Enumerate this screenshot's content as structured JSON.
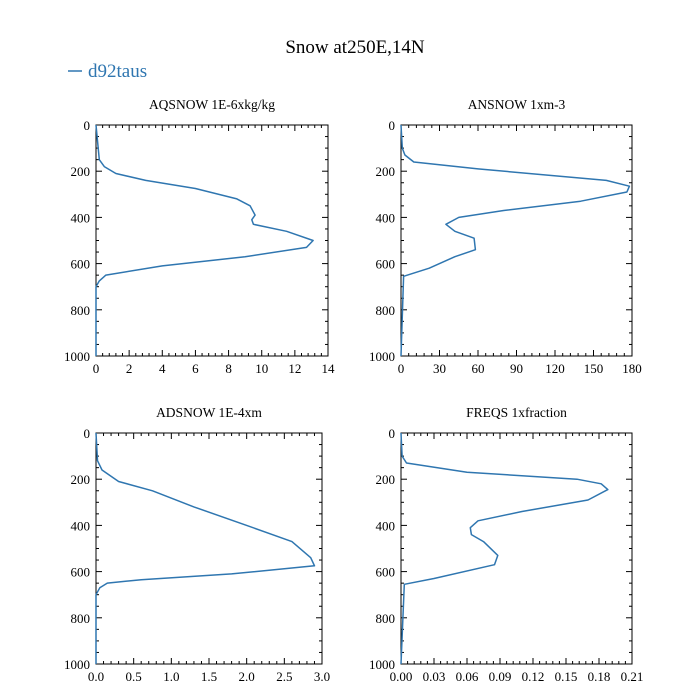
{
  "figure": {
    "title": "Snow at250E,14N",
    "legend": {
      "label": "d92taus",
      "color": "#2f76b0"
    }
  },
  "chart_data": [
    {
      "type": "line",
      "title": "AQSNOW  1E-6xkg/kg",
      "xlim": [
        0,
        14
      ],
      "ylim": [
        1000,
        0
      ],
      "xticks": [
        0,
        2,
        4,
        6,
        8,
        10,
        12,
        14
      ],
      "xtick_labels": [
        "0",
        "2",
        "4",
        "6",
        "8",
        "10",
        "12",
        "14"
      ],
      "yticks": [
        0,
        200,
        400,
        600,
        800,
        1000
      ],
      "ytick_labels": [
        "0",
        "200",
        "400",
        "600",
        "800",
        "1000"
      ],
      "series": [
        {
          "name": "d92taus",
          "x": [
            0,
            0.2,
            0.5,
            1.2,
            3.0,
            6.0,
            8.5,
            9.3,
            9.6,
            9.4,
            9.5,
            11.5,
            13.1,
            12.7,
            9.0,
            4.0,
            0.6,
            0.2,
            0,
            0
          ],
          "y": [
            0,
            150,
            180,
            210,
            240,
            275,
            320,
            350,
            390,
            410,
            430,
            460,
            500,
            530,
            570,
            610,
            650,
            675,
            700,
            1000
          ]
        }
      ]
    },
    {
      "type": "line",
      "title": "ANSNOW  1xm-3",
      "xlim": [
        0,
        180
      ],
      "ylim": [
        1000,
        0
      ],
      "xticks": [
        0,
        30,
        60,
        90,
        120,
        150,
        180
      ],
      "xtick_labels": [
        "0",
        "30",
        "60",
        "90",
        "120",
        "150",
        "180"
      ],
      "yticks": [
        0,
        200,
        400,
        600,
        800,
        1000
      ],
      "ytick_labels": [
        "0",
        "200",
        "400",
        "600",
        "800",
        "1000"
      ],
      "series": [
        {
          "name": "d92taus",
          "x": [
            0,
            1,
            3,
            10,
            60,
            160,
            178,
            176,
            140,
            80,
            45,
            35,
            42,
            57,
            58,
            42,
            22,
            2,
            0
          ],
          "y": [
            0,
            100,
            130,
            160,
            190,
            240,
            265,
            290,
            330,
            370,
            400,
            430,
            460,
            490,
            540,
            570,
            620,
            655,
            1000
          ]
        }
      ]
    },
    {
      "type": "line",
      "title": "ADSNOW  1E-4xm",
      "xlim": [
        0,
        3.0
      ],
      "ylim": [
        1000,
        0
      ],
      "xticks": [
        0,
        0.5,
        1.0,
        1.5,
        2.0,
        2.5,
        3.0
      ],
      "xtick_labels": [
        "0.0",
        "0.5",
        "1.0",
        "1.5",
        "2.0",
        "2.5",
        "3.0"
      ],
      "yticks": [
        0,
        200,
        400,
        600,
        800,
        1000
      ],
      "ytick_labels": [
        "0",
        "200",
        "400",
        "600",
        "800",
        "1000"
      ],
      "series": [
        {
          "name": "d92taus",
          "x": [
            0,
            0.02,
            0.08,
            0.3,
            0.75,
            1.3,
            2.0,
            2.6,
            2.85,
            2.9,
            1.8,
            0.6,
            0.15,
            0.05,
            0,
            0
          ],
          "y": [
            0,
            120,
            160,
            210,
            250,
            320,
            400,
            470,
            540,
            575,
            610,
            635,
            650,
            670,
            700,
            1000
          ]
        }
      ]
    },
    {
      "type": "line",
      "title": "FREQS  1xfraction",
      "xlim": [
        0,
        0.21
      ],
      "ylim": [
        1000,
        0
      ],
      "xticks": [
        0,
        0.03,
        0.06,
        0.09,
        0.12,
        0.15,
        0.18,
        0.21
      ],
      "xtick_labels": [
        "0.00",
        "0.03",
        "0.06",
        "0.09",
        "0.12",
        "0.15",
        "0.18",
        "0.21"
      ],
      "yticks": [
        0,
        200,
        400,
        600,
        800,
        1000
      ],
      "ytick_labels": [
        "0",
        "200",
        "400",
        "600",
        "800",
        "1000"
      ],
      "series": [
        {
          "name": "d92taus",
          "x": [
            0,
            0.001,
            0.005,
            0.06,
            0.16,
            0.182,
            0.188,
            0.17,
            0.11,
            0.07,
            0.063,
            0.064,
            0.075,
            0.088,
            0.085,
            0.03,
            0.003,
            0
          ],
          "y": [
            0,
            100,
            130,
            170,
            200,
            220,
            245,
            290,
            340,
            380,
            410,
            440,
            470,
            530,
            570,
            630,
            655,
            1000
          ]
        }
      ]
    }
  ]
}
